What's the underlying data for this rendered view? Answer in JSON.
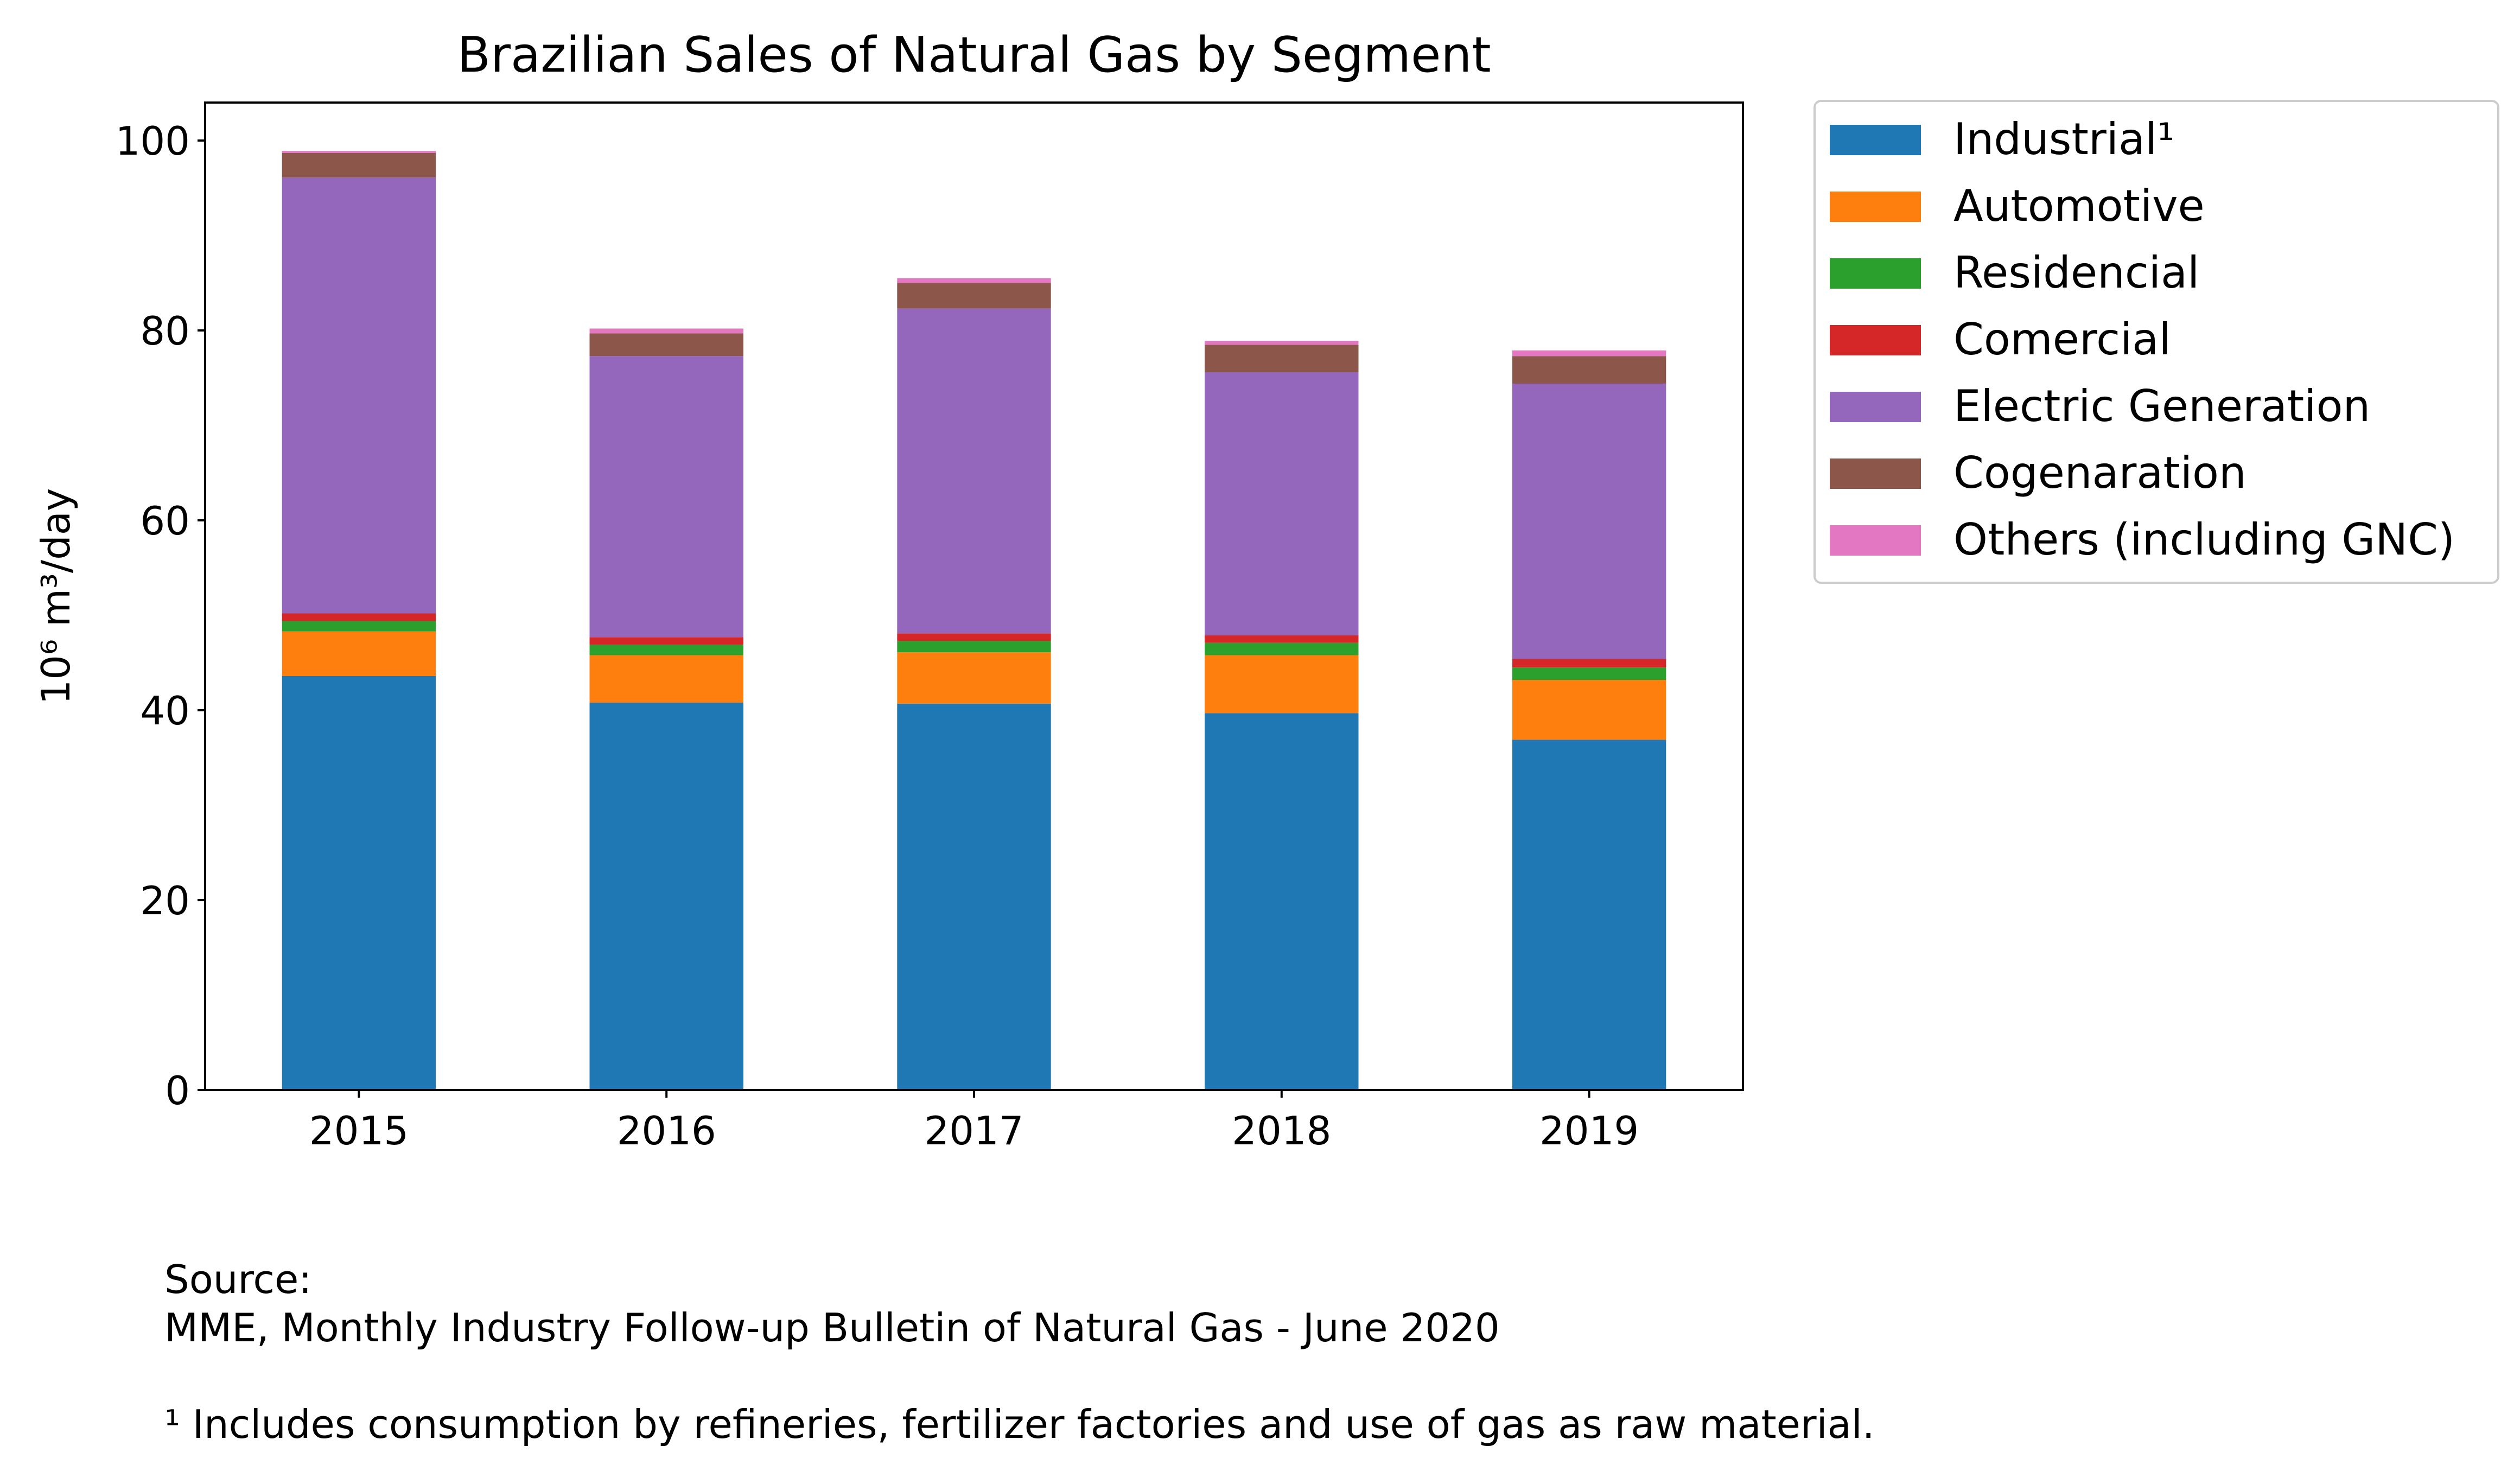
{
  "chart_data": {
    "type": "bar",
    "stacked": true,
    "title": "Brazilian Sales of Natural Gas by Segment",
    "xlabel": "",
    "ylabel": "10⁶ m³/day",
    "categories": [
      "2015",
      "2016",
      "2017",
      "2018",
      "2019"
    ],
    "ylim": [
      0,
      104
    ],
    "yticks": [
      0,
      20,
      40,
      60,
      80,
      100
    ],
    "grid": false,
    "legend_position": "outside-right",
    "series": [
      {
        "name": "Industrial¹",
        "color": "#1f77b4",
        "values": [
          43.6,
          40.8,
          40.7,
          39.7,
          36.9
        ]
      },
      {
        "name": "Automotive",
        "color": "#ff7f0e",
        "values": [
          4.7,
          5.0,
          5.4,
          6.1,
          6.3
        ]
      },
      {
        "name": "Residencial",
        "color": "#2ca02c",
        "values": [
          1.1,
          1.1,
          1.2,
          1.3,
          1.3
        ]
      },
      {
        "name": "Comercial",
        "color": "#d62728",
        "values": [
          0.8,
          0.8,
          0.8,
          0.8,
          0.9
        ]
      },
      {
        "name": "Electric Generation",
        "color": "#9467bd",
        "values": [
          45.9,
          29.6,
          34.2,
          27.7,
          29.0
        ]
      },
      {
        "name": "Cogenaration",
        "color": "#8c564b",
        "values": [
          2.6,
          2.4,
          2.7,
          2.9,
          2.9
        ]
      },
      {
        "name": "Others (including GNC)",
        "color": "#e377c2",
        "values": [
          0.2,
          0.5,
          0.5,
          0.4,
          0.6
        ]
      }
    ]
  },
  "footnotes": {
    "source_label": "Source:",
    "source_text": "MME, Monthly Industry Follow-up Bulletin of Natural Gas - June 2020",
    "note": "¹ Includes consumption by refineries, fertilizer factories and use of gas as raw material."
  }
}
